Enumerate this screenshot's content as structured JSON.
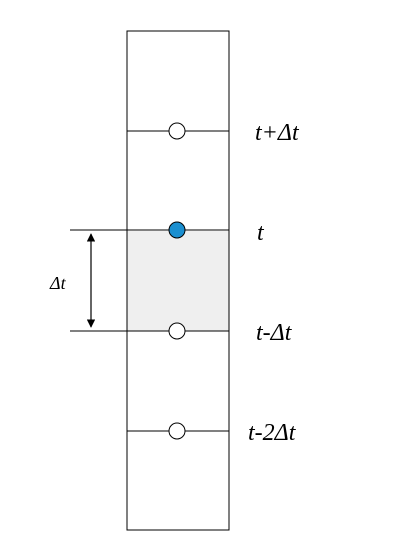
{
  "diagram": {
    "levels": [
      {
        "id": "t_plus_dt",
        "label": "t+Δt",
        "node_state": "open"
      },
      {
        "id": "t",
        "label": "t",
        "node_state": "filled"
      },
      {
        "id": "t_minus_dt",
        "label": "t-Δt",
        "node_state": "open"
      },
      {
        "id": "t_minus_2dt",
        "label": "t-2Δt",
        "node_state": "open"
      }
    ],
    "interval_label": "Δt",
    "shaded_region": {
      "from": "t_minus_dt",
      "to": "t"
    },
    "colors": {
      "filled_node": "#1a8fd0",
      "shaded_region": "#efefef",
      "stroke": "#000000",
      "open_node_fill": "#ffffff"
    }
  }
}
